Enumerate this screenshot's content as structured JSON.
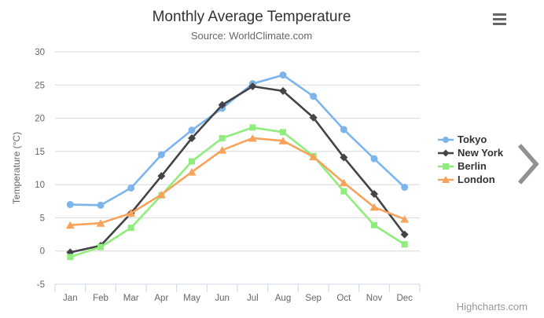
{
  "chart_data": {
    "type": "line",
    "title": "Monthly Average Temperature",
    "subtitle": "Source: WorldClimate.com",
    "categories": [
      "Jan",
      "Feb",
      "Mar",
      "Apr",
      "May",
      "Jun",
      "Jul",
      "Aug",
      "Sep",
      "Oct",
      "Nov",
      "Dec"
    ],
    "series": [
      {
        "name": "Tokyo",
        "color": "#7cb5ec",
        "marker": "circle",
        "values": [
          7.0,
          6.9,
          9.5,
          14.5,
          18.2,
          21.5,
          25.2,
          26.5,
          23.3,
          18.3,
          13.9,
          9.6
        ]
      },
      {
        "name": "New York",
        "color": "#434348",
        "marker": "diamond",
        "values": [
          -0.2,
          0.8,
          5.7,
          11.3,
          17.0,
          22.0,
          24.8,
          24.1,
          20.1,
          14.1,
          8.6,
          2.5
        ]
      },
      {
        "name": "Berlin",
        "color": "#90ed7d",
        "marker": "square",
        "values": [
          -0.9,
          0.6,
          3.5,
          8.4,
          13.5,
          17.0,
          18.6,
          17.9,
          14.3,
          9.0,
          3.9,
          1.0
        ]
      },
      {
        "name": "London",
        "color": "#f7a35c",
        "marker": "triangle",
        "values": [
          3.9,
          4.2,
          5.7,
          8.5,
          11.9,
          15.2,
          17.0,
          16.6,
          14.2,
          10.3,
          6.6,
          4.8
        ]
      }
    ],
    "xlabel": "",
    "ylabel": "Temperature (°C)",
    "ylim": [
      -5,
      30
    ],
    "ytick_step": 5,
    "grid": true,
    "legend_position": "right"
  },
  "credit": {
    "label": "Highcharts.com"
  },
  "colors": {
    "grid_line": "#d8d8d8",
    "axis_line": "#ccd6eb",
    "axis_text": "#666666",
    "title_text": "#333333",
    "subtitle_text": "#666666",
    "legend_text": "#333333",
    "credit_text": "#999999",
    "menu_icon": "#666666",
    "chevron": "#919191"
  }
}
